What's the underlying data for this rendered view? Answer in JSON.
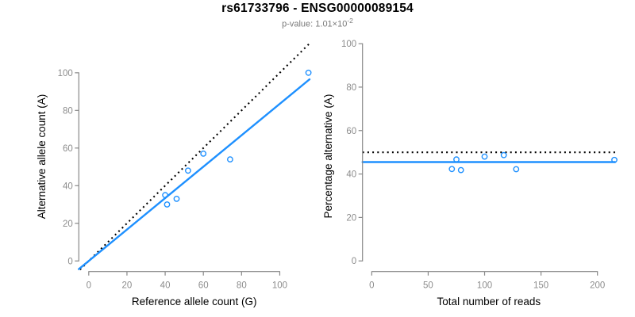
{
  "page": {
    "title": "rs61733796 - ENSG00000089154",
    "subtitle_prefix": "p-value: 1.01×10",
    "subtitle_exponent": "-2"
  },
  "colors": {
    "accent_blue": "#1E90FF",
    "axis_gray": "#888888",
    "tick_label_gray": "#8C8C8C",
    "axis_title_black": "#000000",
    "subtitle_gray": "#7A7A7A",
    "background": "#FFFFFF"
  },
  "chart_data": [
    {
      "type": "scatter",
      "panel": "left",
      "xlabel": "Reference allele count (G)",
      "ylabel": "Alternative allele count (A)",
      "xticks": [
        0,
        20,
        40,
        60,
        80,
        100
      ],
      "yticks": [
        0,
        20,
        40,
        60,
        80,
        100
      ],
      "xlim": [
        -5.2,
        115.6
      ],
      "ylim": [
        -4.6,
        115.6
      ],
      "grid": false,
      "legend": "none",
      "points": [
        {
          "x": 40,
          "y": 35
        },
        {
          "x": 41,
          "y": 30
        },
        {
          "x": 46,
          "y": 33
        },
        {
          "x": 52,
          "y": 48
        },
        {
          "x": 60,
          "y": 57
        },
        {
          "x": 74,
          "y": 54
        },
        {
          "x": 115,
          "y": 100
        }
      ],
      "lines": [
        {
          "name": "identity-line",
          "style": "dotted",
          "color": "#000000",
          "slope": 1,
          "intercept": 0
        },
        {
          "name": "fit-line",
          "style": "solid",
          "color": "#1E90FF",
          "slope": 0.835,
          "intercept": 0
        }
      ]
    },
    {
      "type": "scatter",
      "panel": "right",
      "xlabel": "Total number of reads",
      "ylabel": "Percentage alternative (A)",
      "xticks": [
        0,
        50,
        100,
        150,
        200
      ],
      "yticks": [
        0,
        20,
        40,
        60,
        80,
        100
      ],
      "xlim": [
        -8.2,
        215.7
      ],
      "ylim": [
        -4.0,
        100.4
      ],
      "grid": false,
      "legend": "none",
      "points": [
        {
          "x": 75,
          "y": 46.7
        },
        {
          "x": 71,
          "y": 42.3
        },
        {
          "x": 79,
          "y": 41.8
        },
        {
          "x": 100,
          "y": 48.0
        },
        {
          "x": 117,
          "y": 48.7
        },
        {
          "x": 128,
          "y": 42.2
        },
        {
          "x": 215,
          "y": 46.5
        }
      ],
      "lines": [
        {
          "name": "expected-50pct-line",
          "style": "dotted",
          "color": "#000000",
          "value": 50
        },
        {
          "name": "fit-line",
          "style": "solid",
          "color": "#1E90FF",
          "value": 45.5
        }
      ]
    }
  ]
}
